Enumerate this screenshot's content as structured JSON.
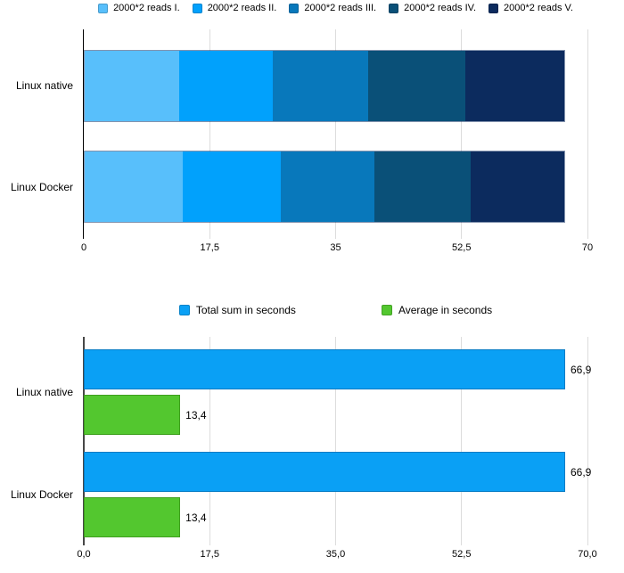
{
  "chart_data": [
    {
      "type": "bar",
      "subtype": "stacked-horizontal",
      "title": "",
      "categories": [
        "Linux native",
        "Linux Docker"
      ],
      "series": [
        {
          "name": "2000*2 reads I.",
          "color": "#58BFFB",
          "values": [
            13.1,
            13.6
          ]
        },
        {
          "name": "2000*2 reads II.",
          "color": "#01A1FC",
          "values": [
            13.0,
            13.7
          ]
        },
        {
          "name": "2000*2 reads III.",
          "color": "#0878BB",
          "values": [
            13.3,
            13.0
          ]
        },
        {
          "name": "2000*2 reads IV.",
          "color": "#0A5078",
          "values": [
            13.5,
            13.3
          ]
        },
        {
          "name": "2000*2 reads V.",
          "color": "#0C2B5E",
          "values": [
            14.0,
            13.3
          ]
        }
      ],
      "totals": [
        66.9,
        66.9
      ],
      "x_ticks": [
        {
          "value": 0,
          "label": "0"
        },
        {
          "value": 17.5,
          "label": "17,5"
        },
        {
          "value": 35,
          "label": "35"
        },
        {
          "value": 52.5,
          "label": "52,5"
        },
        {
          "value": 70,
          "label": "70"
        }
      ],
      "xlim": [
        0,
        70
      ],
      "xlabel": "",
      "ylabel": "",
      "legend_position": "top",
      "grid": true
    },
    {
      "type": "bar",
      "subtype": "grouped-horizontal",
      "title": "",
      "categories": [
        "Linux native",
        "Linux Docker"
      ],
      "series": [
        {
          "name": "Total sum in seconds",
          "color": "#0AA0F5",
          "border": "rgba(4,80,140,0.45)",
          "values": [
            66.9,
            66.9
          ],
          "value_labels": [
            "66,9",
            "66,9"
          ]
        },
        {
          "name": "Average in seconds",
          "color": "#53C72F",
          "border": "rgba(40,110,10,0.45)",
          "values": [
            13.4,
            13.4
          ],
          "value_labels": [
            "13,4",
            "13,4"
          ]
        }
      ],
      "x_ticks": [
        {
          "value": 0,
          "label": "0,0"
        },
        {
          "value": 17.5,
          "label": "17,5"
        },
        {
          "value": 35,
          "label": "35,0"
        },
        {
          "value": 52.5,
          "label": "52,5"
        },
        {
          "value": 70,
          "label": "70,0"
        }
      ],
      "xlim": [
        0,
        70
      ],
      "xlabel": "",
      "ylabel": "",
      "legend_position": "top",
      "grid": true
    }
  ]
}
